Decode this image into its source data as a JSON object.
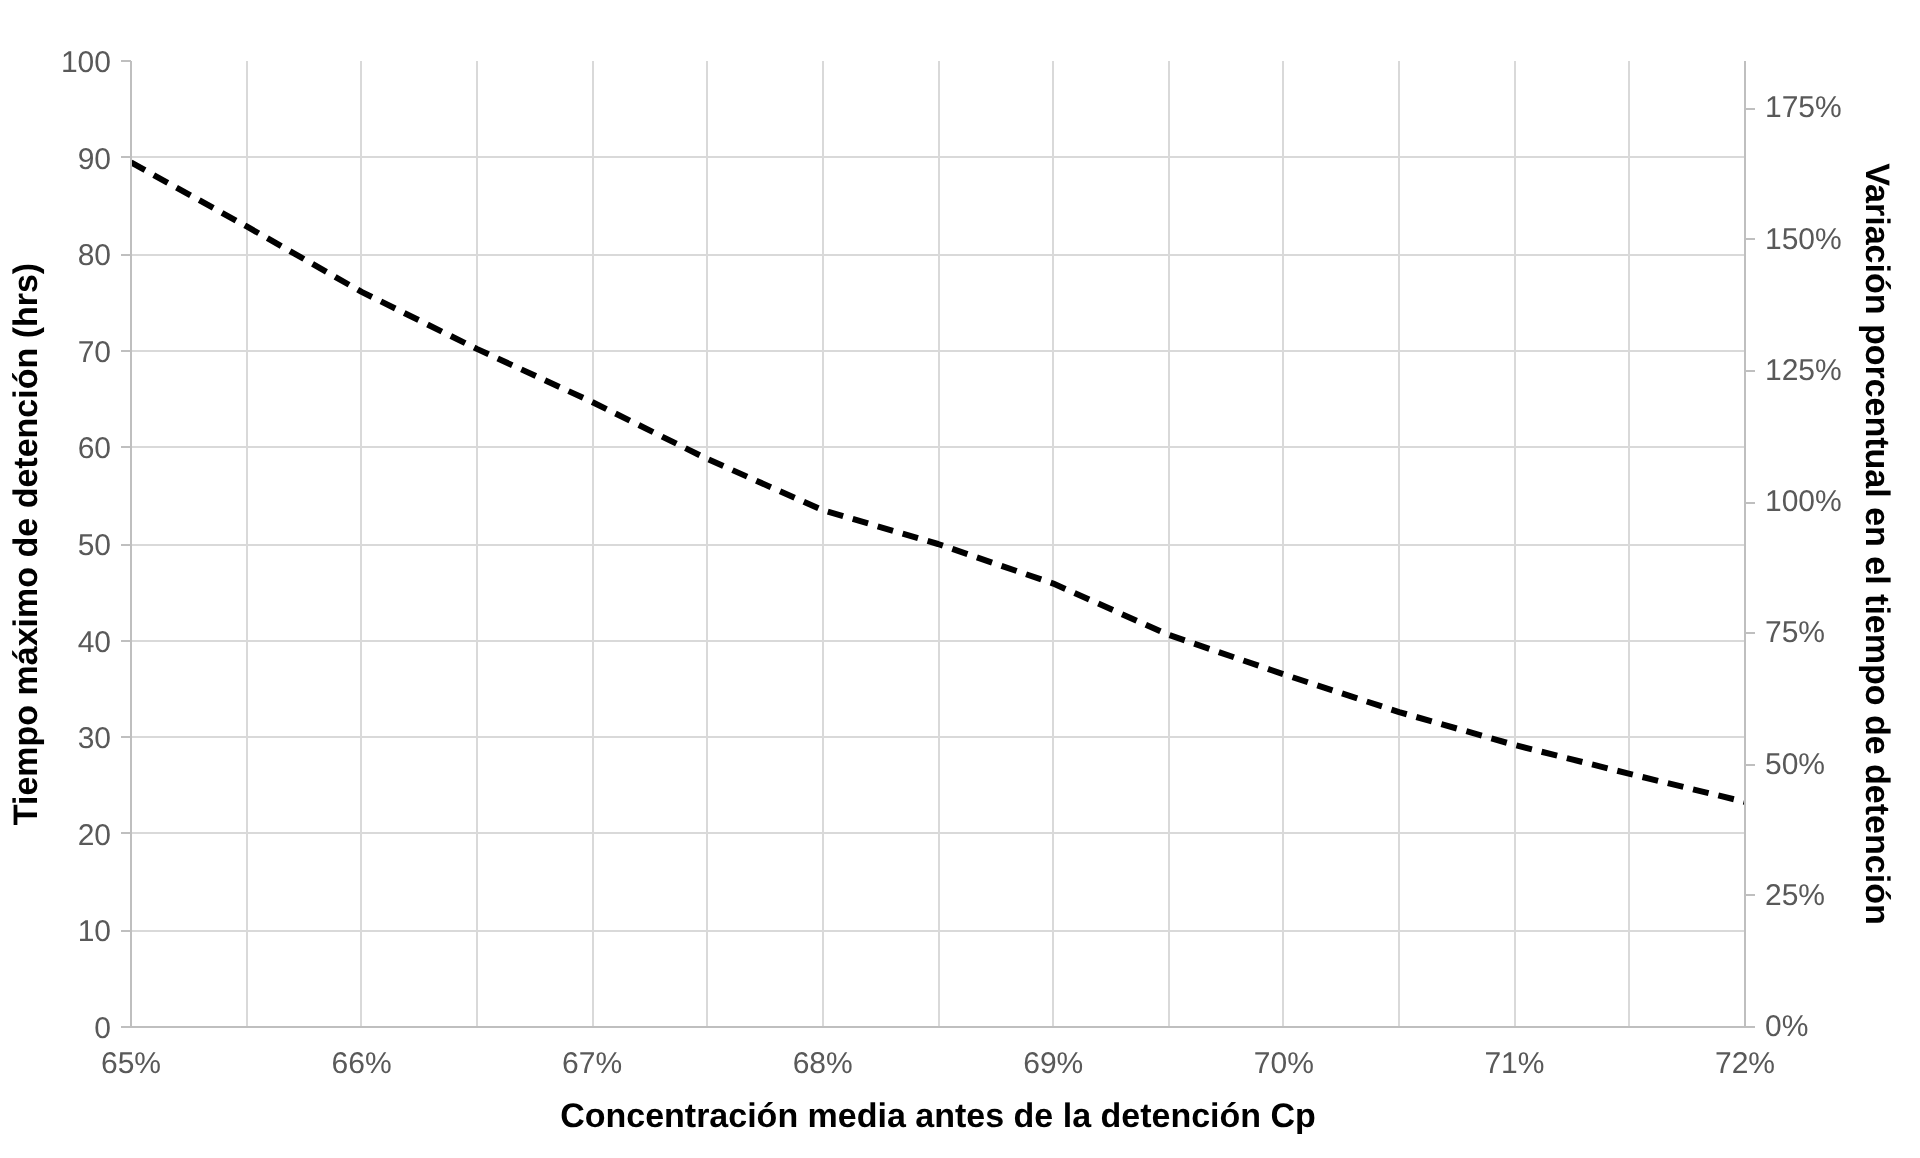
{
  "chart_data": {
    "type": "line",
    "xlabel": "Concentración media antes de la detención Cp",
    "ylabel": "Tiempo máximo de detención (hrs)",
    "y2label": "Variación porcentual en el tiempo de detención",
    "x": [
      65,
      65.5,
      66,
      66.5,
      67,
      67.5,
      68,
      68.5,
      69,
      69.5,
      70,
      70.5,
      71,
      71.5,
      72
    ],
    "series": [
      {
        "color": "#000000",
        "values": [
          89.5,
          82.9,
          76.1,
          70.2,
          64.7,
          58.8,
          53.5,
          50,
          45.9,
          40.6,
          36.5,
          32.6,
          29.2,
          26.2,
          23.3
        ]
      }
    ],
    "xlim": [
      65,
      72
    ],
    "xticks": [
      {
        "value": 65,
        "label": "65%"
      },
      {
        "value": 65.5,
        "label": null
      },
      {
        "value": 66,
        "label": "66%"
      },
      {
        "value": 66.5,
        "label": null
      },
      {
        "value": 67,
        "label": "67%"
      },
      {
        "value": 67.5,
        "label": null
      },
      {
        "value": 68,
        "label": "68%"
      },
      {
        "value": 68.5,
        "label": null
      },
      {
        "value": 69,
        "label": "69%"
      },
      {
        "value": 69.5,
        "label": null
      },
      {
        "value": 70,
        "label": "70%"
      },
      {
        "value": 70.5,
        "label": null
      },
      {
        "value": 71,
        "label": "71%"
      },
      {
        "value": 71.5,
        "label": null
      },
      {
        "value": 72,
        "label": "72%"
      }
    ],
    "ylim": [
      0,
      100
    ],
    "yticks": [
      0,
      10,
      20,
      30,
      40,
      50,
      60,
      70,
      80,
      90,
      100
    ],
    "y2lim": [
      0,
      184
    ],
    "y2ticks": [
      {
        "value": 0,
        "label": "0%"
      },
      {
        "value": 25,
        "label": "25%"
      },
      {
        "value": 50,
        "label": "50%"
      },
      {
        "value": 75,
        "label": "75%"
      },
      {
        "value": 100,
        "label": "100%"
      },
      {
        "value": 125,
        "label": "125%"
      },
      {
        "value": 150,
        "label": "150%"
      },
      {
        "value": 175,
        "label": "175%"
      }
    ],
    "grid": true,
    "line_style": "dashed",
    "marker": "none"
  }
}
